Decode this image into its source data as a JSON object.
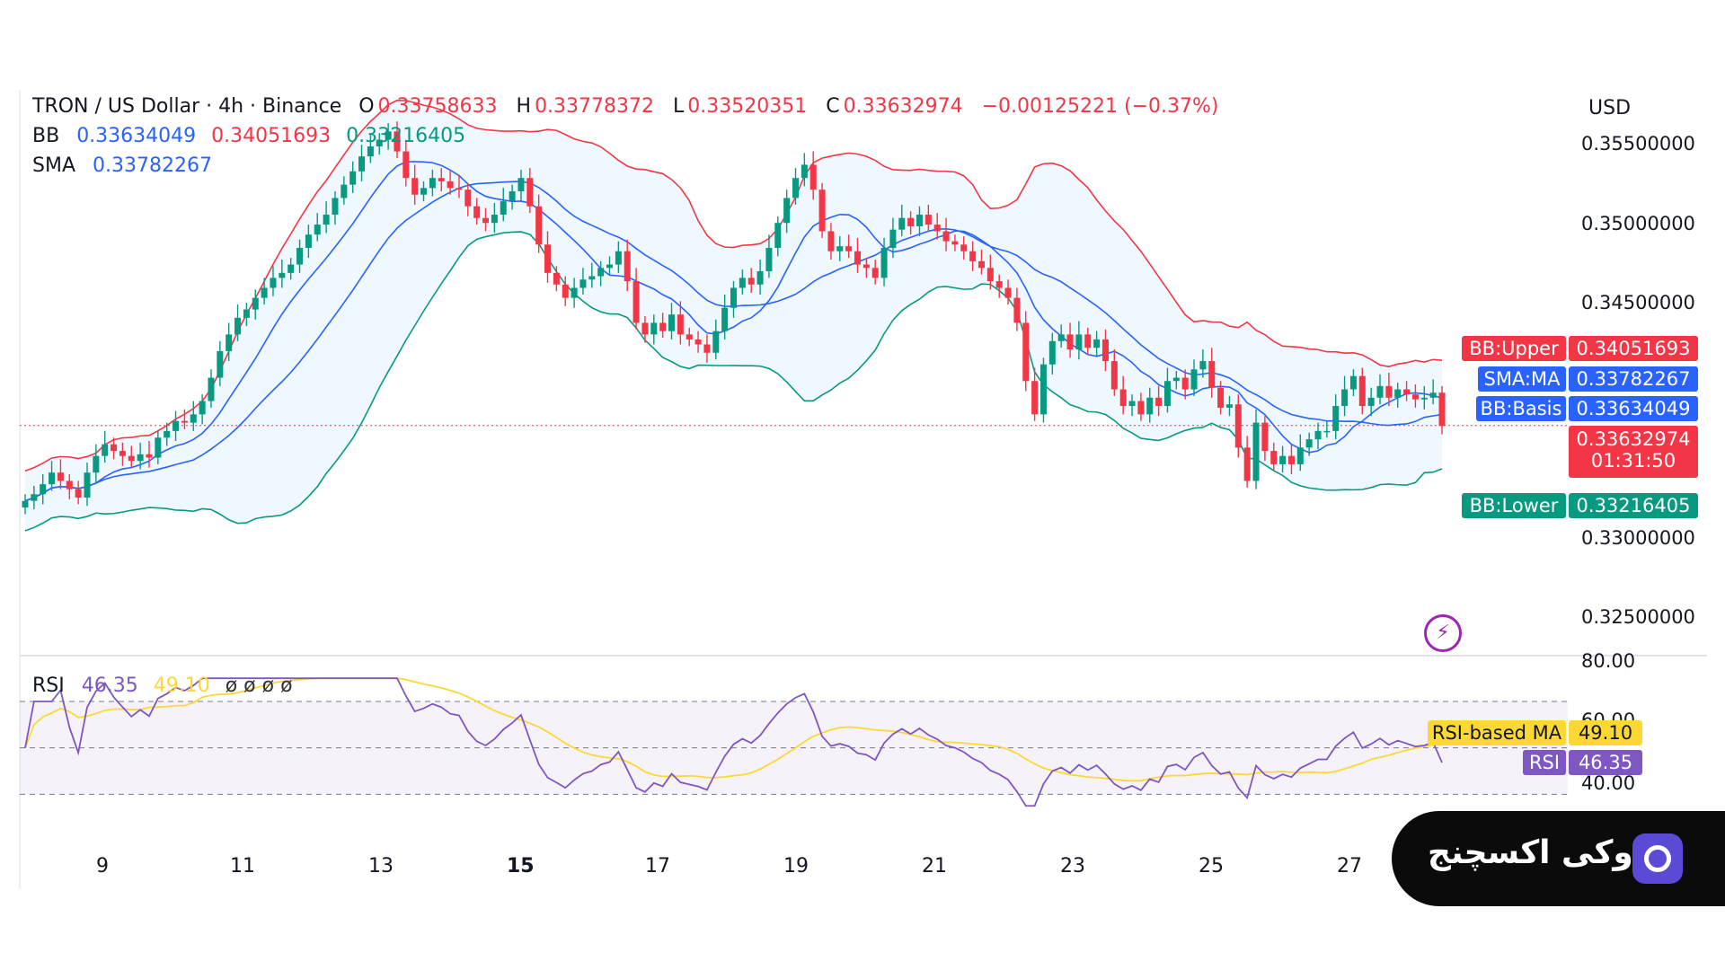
{
  "header": {
    "symbol": "TRON / US Dollar · 4h · Binance",
    "o_label": "O",
    "o": "0.33758633",
    "h_label": "H",
    "h": "0.33778372",
    "l_label": "L",
    "l": "0.33520351",
    "c_label": "C",
    "c": "0.33632974",
    "change": "−0.00125221 (−0.37%)",
    "bb_label": "BB",
    "bb_basis": "0.33634049",
    "bb_upper": "0.34051693",
    "bb_lower": "0.33216405",
    "sma_label": "SMA",
    "sma": "0.33782267",
    "rsi_label": "RSI",
    "rsi": "46.35",
    "rsi_ma": "49.10",
    "rsi_extra": "ø ø ø ø"
  },
  "currency": "USD",
  "price_axis": [
    "0.35500000",
    "0.35000000",
    "0.34500000",
    "0.33000000",
    "0.32500000"
  ],
  "rsi_axis": [
    "80.00",
    "60.00",
    "40.00"
  ],
  "labels": {
    "bb_upper": "BB:Upper",
    "bb_upper_val": "0.34051693",
    "sma": "SMA:MA",
    "sma_val": "0.33782267",
    "bb_basis": "BB:Basis",
    "bb_basis_val": "0.33634049",
    "last_price": "0.33632974",
    "countdown": "01:31:50",
    "bb_lower": "BB:Lower",
    "bb_lower_val": "0.33216405",
    "rsi_ma": "RSI-based MA",
    "rsi_ma_val": "49.10",
    "rsi": "RSI",
    "rsi_val": "46.35"
  },
  "x_axis": [
    "9",
    "11",
    "13",
    "15",
    "17",
    "19",
    "21",
    "23",
    "25",
    "27"
  ],
  "brand": {
    "name": "اوکی اکسچنج"
  },
  "colors": {
    "up": "#089981",
    "down": "#f23645",
    "bb_upper": "#f23645",
    "bb_lower": "#089981",
    "basis": "#2962ff",
    "sma": "#2962ff",
    "rsi": "#7e57c2",
    "rsi_ma": "#fdd835"
  },
  "chart_data": {
    "type": "candlestick",
    "title": "TRON / US Dollar · 4h · Binance",
    "ylim": [
      0.3225,
      0.3565
    ],
    "rsi_ylim": [
      22,
      82
    ],
    "close": [
      0.3318,
      0.3322,
      0.3328,
      0.3335,
      0.333,
      0.3325,
      0.332,
      0.3335,
      0.3345,
      0.3352,
      0.3348,
      0.3345,
      0.3342,
      0.3346,
      0.3344,
      0.3356,
      0.336,
      0.3366,
      0.3365,
      0.337,
      0.3378,
      0.3392,
      0.3408,
      0.3418,
      0.3428,
      0.3433,
      0.344,
      0.3446,
      0.3452,
      0.3455,
      0.346,
      0.347,
      0.3478,
      0.3484,
      0.349,
      0.35,
      0.3508,
      0.3516,
      0.3525,
      0.3531,
      0.3535,
      0.354,
      0.3528,
      0.3512,
      0.3502,
      0.3506,
      0.3512,
      0.351,
      0.3506,
      0.3505,
      0.3495,
      0.3488,
      0.3485,
      0.349,
      0.3498,
      0.3504,
      0.3512,
      0.3495,
      0.3472,
      0.3455,
      0.3448,
      0.344,
      0.3446,
      0.3451,
      0.3453,
      0.3458,
      0.346,
      0.3468,
      0.345,
      0.3425,
      0.3418,
      0.3425,
      0.342,
      0.343,
      0.3418,
      0.3415,
      0.3412,
      0.3407,
      0.342,
      0.3434,
      0.3446,
      0.3452,
      0.3448,
      0.3456,
      0.347,
      0.3485,
      0.35,
      0.3512,
      0.352,
      0.3505,
      0.348,
      0.3468,
      0.3471,
      0.3468,
      0.346,
      0.3458,
      0.3452,
      0.347,
      0.3481,
      0.3488,
      0.3483,
      0.349,
      0.3484,
      0.348,
      0.3474,
      0.3472,
      0.3468,
      0.3462,
      0.3458,
      0.345,
      0.3446,
      0.344,
      0.3425,
      0.339,
      0.337,
      0.34,
      0.3414,
      0.3418,
      0.3409,
      0.3418,
      0.341,
      0.3415,
      0.3402,
      0.3385,
      0.3375,
      0.3378,
      0.337,
      0.338,
      0.3375,
      0.339,
      0.3392,
      0.3385,
      0.3397,
      0.3402,
      0.3386,
      0.3374,
      0.3376,
      0.335,
      0.333,
      0.3365,
      0.3348,
      0.334,
      0.3345,
      0.334,
      0.335,
      0.3355,
      0.336,
      0.336,
      0.3375,
      0.3385,
      0.3393,
      0.3375,
      0.338,
      0.3387,
      0.338,
      0.3385,
      0.3382,
      0.3379,
      0.338,
      0.3383,
      0.3363
    ],
    "indicators": {
      "bb_upper_last": 0.34051693,
      "bb_basis_last": 0.33634049,
      "bb_lower_last": 0.33216405,
      "sma_last": 0.33782267,
      "last_price": 0.33632974,
      "rsi_last": 46.35,
      "rsi_ma_last": 49.1,
      "rsi_bands": [
        70,
        50,
        30
      ]
    }
  }
}
